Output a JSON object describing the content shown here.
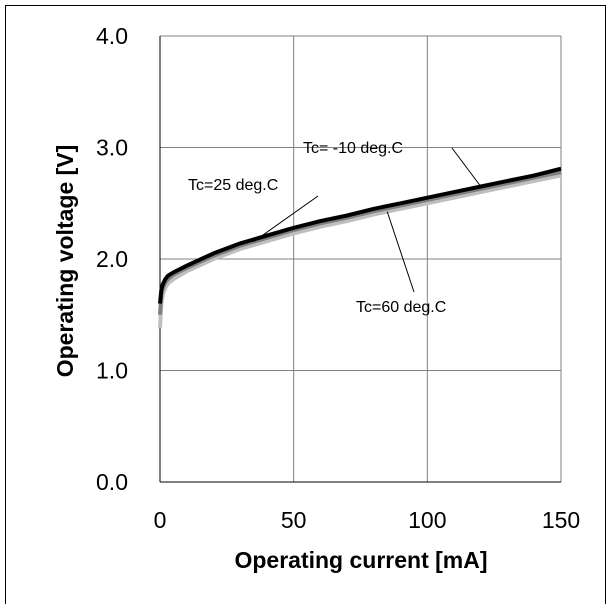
{
  "chart_data": {
    "type": "line",
    "xlabel": "Operating current [mA]",
    "ylabel": "Operating voltage [V]",
    "xlim": [
      0,
      150
    ],
    "ylim": [
      0.0,
      4.0
    ],
    "x_ticks": [
      "0",
      "50",
      "100",
      "150"
    ],
    "y_ticks": [
      "0.0",
      "1.0",
      "2.0",
      "3.0",
      "4.0"
    ],
    "grid": true,
    "legend": "none",
    "series": [
      {
        "name": "Tc= -10 deg.C",
        "color": "#000000",
        "x": [
          0,
          0.5,
          1,
          2,
          3,
          5,
          10,
          20,
          30,
          40,
          50,
          60,
          70,
          80,
          90,
          100,
          110,
          120,
          130,
          140,
          150
        ],
        "y": [
          1.6,
          1.72,
          1.77,
          1.82,
          1.85,
          1.88,
          1.94,
          2.05,
          2.14,
          2.21,
          2.28,
          2.34,
          2.39,
          2.45,
          2.5,
          2.55,
          2.6,
          2.65,
          2.7,
          2.75,
          2.81
        ]
      },
      {
        "name": "Tc=25 deg.C",
        "color": "#7f7f7f",
        "x": [
          0,
          0.5,
          1,
          2,
          3,
          5,
          10,
          20,
          30,
          40,
          50,
          60,
          70,
          80,
          90,
          100,
          110,
          120,
          130,
          140,
          150
        ],
        "y": [
          1.5,
          1.68,
          1.74,
          1.79,
          1.82,
          1.86,
          1.92,
          2.03,
          2.12,
          2.19,
          2.26,
          2.32,
          2.37,
          2.43,
          2.48,
          2.53,
          2.58,
          2.63,
          2.68,
          2.73,
          2.78
        ]
      },
      {
        "name": "Tc=60 deg.C",
        "color": "#bfbfbf",
        "x": [
          0,
          0.5,
          1,
          2,
          3,
          5,
          10,
          20,
          30,
          40,
          50,
          60,
          70,
          80,
          90,
          100,
          110,
          120,
          130,
          140,
          150
        ],
        "y": [
          1.38,
          1.6,
          1.68,
          1.74,
          1.78,
          1.82,
          1.89,
          2.0,
          2.09,
          2.16,
          2.23,
          2.29,
          2.34,
          2.4,
          2.45,
          2.5,
          2.55,
          2.6,
          2.65,
          2.7,
          2.75
        ]
      }
    ],
    "annotations": [
      {
        "text": "Tc= -10 deg.C",
        "series": 0
      },
      {
        "text": "Tc=25 deg.C",
        "series": 1
      },
      {
        "text": "Tc=60 deg.C",
        "series": 2
      }
    ]
  }
}
